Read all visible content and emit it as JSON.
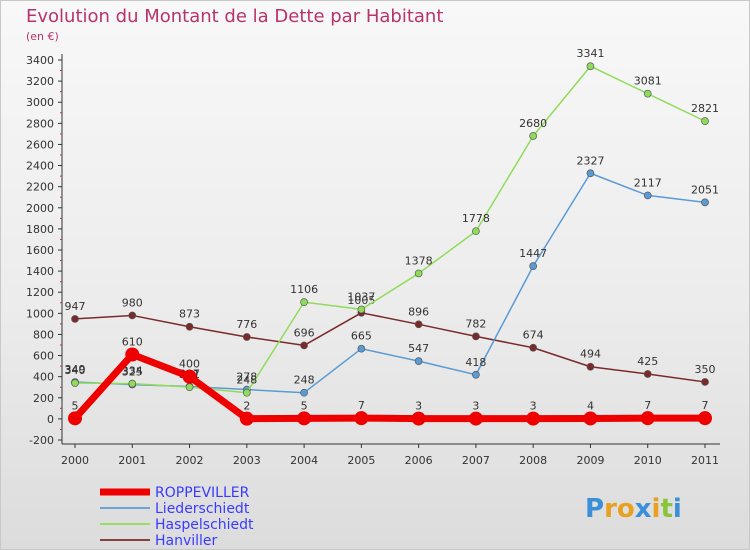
{
  "chart_data": {
    "type": "line",
    "title": "Evolution du Montant de la Dette par Habitant",
    "subtitle": "(en €)",
    "x": [
      "2000",
      "2001",
      "2002",
      "2003",
      "2004",
      "2005",
      "2006",
      "2007",
      "2008",
      "2009",
      "2010",
      "2011"
    ],
    "ylim": [
      -200,
      3400
    ],
    "yticks": [
      -200,
      0,
      200,
      400,
      600,
      800,
      1000,
      1200,
      1400,
      1600,
      1800,
      2000,
      2200,
      2400,
      2600,
      2800,
      3000,
      3200,
      3400
    ],
    "grid": false,
    "legend_position": "bottom-left",
    "series": [
      {
        "name": "Hanviller",
        "color": "#7a2a2a",
        "values": [
          947,
          980,
          873,
          776,
          696,
          1005,
          896,
          782,
          674,
          494,
          425,
          350
        ]
      },
      {
        "name": "Liederschiedt",
        "color": "#5b9bd5",
        "values": [
          349,
          325,
          307,
          278,
          248,
          665,
          547,
          418,
          1447,
          2327,
          2117,
          2051
        ]
      },
      {
        "name": "Haspelschiedt",
        "color": "#8fdc5a",
        "values": [
          340,
          334,
          301,
          248,
          1106,
          1037,
          1378,
          1778,
          2680,
          3341,
          3081,
          2821
        ]
      },
      {
        "name": "ROPPEVILLER",
        "color": "#ee0000",
        "values": [
          5,
          610,
          400,
          2,
          5,
          7,
          3,
          3,
          3,
          4,
          7,
          7
        ]
      }
    ],
    "legend_order": [
      "ROPPEVILLER",
      "Liederschiedt",
      "Haspelschiedt",
      "Hanviller"
    ]
  },
  "logo": {
    "text": "Proxiti",
    "letters": [
      "P",
      "r",
      "o",
      "x",
      "i",
      "t",
      "i"
    ],
    "colors": [
      "#3a8fd8",
      "#e8a020",
      "#e8a020",
      "#3a8fd8",
      "#e8a020",
      "#8ac43a",
      "#3a8fd8"
    ]
  }
}
